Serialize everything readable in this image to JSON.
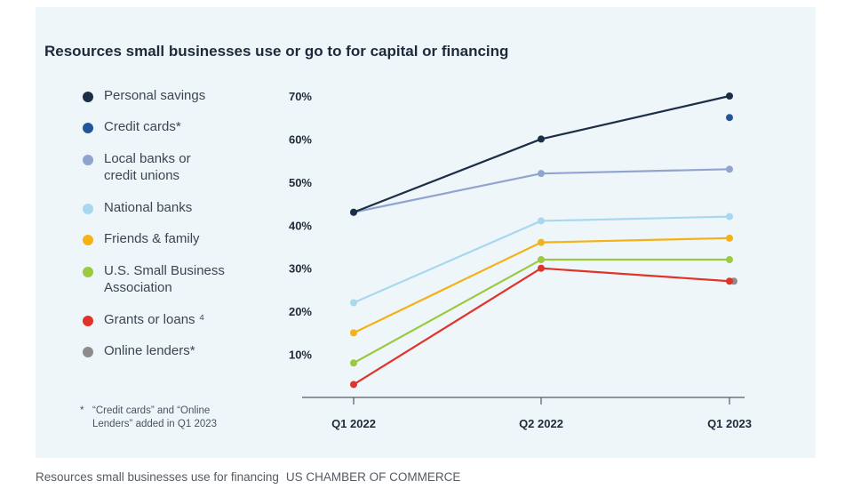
{
  "title": "Resources small businesses use or go to for capital or financing",
  "footnote": {
    "mark": "*",
    "text": "“Credit cards” and “Online Lenders” added in Q1 2023"
  },
  "caption": {
    "text": "Resources small businesses use for financing",
    "source": "US CHAMBER OF COMMERCE"
  },
  "chart_data": {
    "type": "line",
    "title": "Resources small businesses use or go to for capital or financing",
    "categories": [
      "Q1 2022",
      "Q2 2022",
      "Q1 2023"
    ],
    "y_ticks": [
      "10%",
      "20%",
      "30%",
      "40%",
      "50%",
      "60%",
      "70%"
    ],
    "ylim": [
      0,
      72
    ],
    "grid": false,
    "legend_position": "left",
    "series": [
      {
        "name": "Personal savings",
        "color": "#1c2e45",
        "values": [
          43,
          60,
          70
        ]
      },
      {
        "name": "Credit cards*",
        "color": "#22569b",
        "values": [
          null,
          null,
          65
        ]
      },
      {
        "name": "Local banks or credit unions",
        "color": "#8fa4cf",
        "values": [
          43,
          52,
          53
        ]
      },
      {
        "name": "National banks",
        "color": "#a8d8f0",
        "values": [
          22,
          41,
          42
        ]
      },
      {
        "name": "Friends & family",
        "color": "#f3b216",
        "values": [
          15,
          36,
          37
        ]
      },
      {
        "name": "U.S. Small Business Association",
        "color": "#9bc940",
        "values": [
          8,
          32,
          32
        ]
      },
      {
        "name": "Grants or loans ⁴",
        "color": "#e03329",
        "values": [
          3,
          30,
          27
        ]
      },
      {
        "name": "Online lenders*",
        "color": "#8c8c8c",
        "values": [
          null,
          null,
          27
        ]
      }
    ]
  }
}
